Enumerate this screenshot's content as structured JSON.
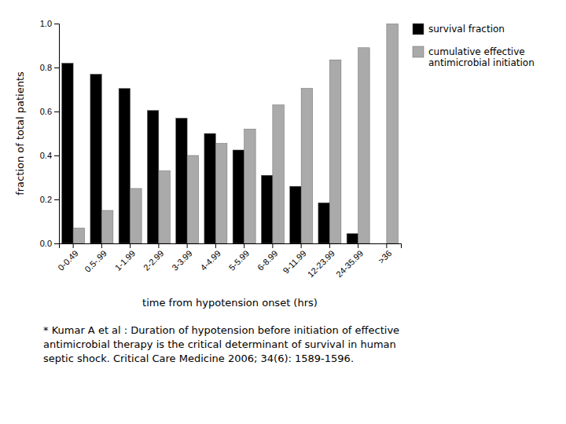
{
  "chart_data": {
    "type": "bar",
    "categories": [
      "0-0.49",
      "0.5-.99",
      "1-1.99",
      "2-2.99",
      "3-3.99",
      "4-4.99",
      "5-5.99",
      "6-8.99",
      "9-11.99",
      "12-23.99",
      "24-35.99",
      ">36"
    ],
    "series": [
      {
        "name": "survival fraction",
        "color": "#000000",
        "values": [
          0.82,
          0.77,
          0.705,
          0.605,
          0.57,
          0.5,
          0.425,
          0.31,
          0.26,
          0.185,
          0.045,
          0.0
        ]
      },
      {
        "name": "cumulative effective\nantimicrobial initiation",
        "color": "#aaaaaa",
        "values": [
          0.07,
          0.15,
          0.25,
          0.33,
          0.4,
          0.455,
          0.52,
          0.63,
          0.705,
          0.835,
          0.89,
          1.0
        ]
      }
    ],
    "xlabel": "time from hypotension onset (hrs)",
    "ylabel": "fraction of total patients",
    "ylim": [
      0.0,
      1.0
    ],
    "yticks": [
      {
        "value": 0.0,
        "label": "0.0"
      },
      0.2,
      0.4,
      0.6,
      0.8,
      {
        "value": 1.0,
        "label": "1.0"
      }
    ],
    "legend": "upper right",
    "grid": false,
    "annotations": [
      "* Kumar A et al :  Duration of hypotension before initiation of effective",
      "antimicrobial therapy is the critical determinant of survival in human",
      "septic shock.  Critical Care Medicine 2006; 34(6): 1589-1596."
    ]
  }
}
